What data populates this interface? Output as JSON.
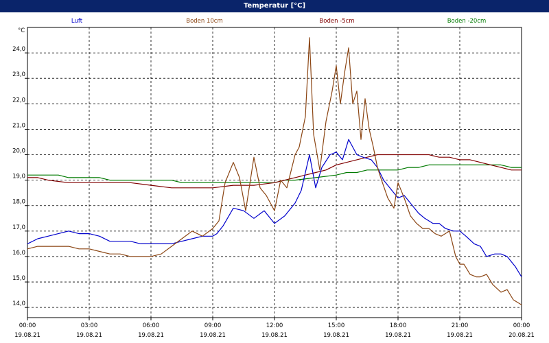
{
  "window": {
    "title": "Temperatur [°C]"
  },
  "chart_data": {
    "type": "line",
    "title": "Temperatur [°C]",
    "ylabel": "°C",
    "xlabel": "",
    "ylim": [
      13.6,
      25.0
    ],
    "yticks": [
      "14,0",
      "15,0",
      "16,0",
      "17,0",
      "18,0",
      "19,0",
      "20,0",
      "21,0",
      "22,0",
      "23,0",
      "24,0"
    ],
    "xticks": [
      {
        "time": "00:00",
        "date": "19.08.21"
      },
      {
        "time": "03:00",
        "date": "19.08.21"
      },
      {
        "time": "06:00",
        "date": "19.08.21"
      },
      {
        "time": "09:00",
        "date": "19.08.21"
      },
      {
        "time": "12:00",
        "date": "19.08.21"
      },
      {
        "time": "15:00",
        "date": "19.08.21"
      },
      {
        "time": "18:00",
        "date": "19.08.21"
      },
      {
        "time": "21:00",
        "date": "19.08.21"
      },
      {
        "time": "00:00",
        "date": "20.08.21"
      }
    ],
    "x_unit": "hours since 19.08.21 00:00",
    "grid": true,
    "series": [
      {
        "name": "Luft",
        "color": "#0000cc",
        "x": [
          0,
          0.5,
          1,
          1.5,
          2,
          2.5,
          3,
          3.5,
          4,
          4.5,
          5,
          5.5,
          6,
          6.5,
          7,
          7.5,
          8,
          8.5,
          9,
          9.2,
          9.5,
          10,
          10.5,
          11,
          11.5,
          12,
          12.5,
          13,
          13.3,
          13.7,
          14,
          14.3,
          14.7,
          15,
          15.3,
          15.6,
          16,
          16.3,
          16.7,
          17,
          17.3,
          17.7,
          18,
          18.3,
          18.7,
          19,
          19.3,
          19.7,
          20,
          20.3,
          20.7,
          21,
          21.3,
          21.7,
          22,
          22.3,
          22.7,
          23,
          23.3,
          23.7,
          24
        ],
        "y": [
          16.5,
          16.7,
          16.8,
          16.9,
          17.0,
          16.9,
          16.9,
          16.8,
          16.6,
          16.6,
          16.6,
          16.5,
          16.5,
          16.5,
          16.5,
          16.6,
          16.7,
          16.8,
          16.8,
          16.9,
          17.2,
          17.9,
          17.8,
          17.5,
          17.8,
          17.3,
          17.6,
          18.1,
          18.6,
          20.0,
          18.7,
          19.5,
          20.0,
          20.1,
          19.8,
          20.6,
          20.0,
          19.9,
          19.8,
          19.5,
          19.0,
          18.6,
          18.3,
          18.4,
          18.0,
          17.7,
          17.5,
          17.3,
          17.3,
          17.1,
          17.0,
          17.0,
          16.8,
          16.5,
          16.4,
          16.0,
          16.1,
          16.1,
          16.0,
          15.6,
          15.2
        ]
      },
      {
        "name": "Boden 10cm",
        "color": "#8b4513",
        "x": [
          0,
          0.5,
          1,
          1.5,
          2,
          2.5,
          3,
          3.5,
          4,
          4.5,
          5,
          5.5,
          6,
          6.5,
          7,
          7.5,
          8,
          8.5,
          9,
          9.3,
          9.6,
          10,
          10.3,
          10.6,
          11,
          11.3,
          11.6,
          12,
          12.3,
          12.6,
          13,
          13.2,
          13.5,
          13.7,
          13.9,
          14.2,
          14.5,
          14.8,
          15,
          15.2,
          15.4,
          15.6,
          15.8,
          16,
          16.2,
          16.4,
          16.6,
          16.8,
          17,
          17.2,
          17.5,
          17.8,
          18,
          18.3,
          18.6,
          18.9,
          19.2,
          19.5,
          19.8,
          20.1,
          20.5,
          20.8,
          21,
          21.2,
          21.5,
          21.8,
          22,
          22.3,
          22.6,
          23,
          23.3,
          23.6,
          24
        ],
        "y": [
          16.3,
          16.4,
          16.4,
          16.4,
          16.4,
          16.3,
          16.3,
          16.2,
          16.1,
          16.1,
          16.0,
          16.0,
          16.0,
          16.1,
          16.4,
          16.7,
          17.0,
          16.8,
          17.1,
          17.4,
          18.9,
          19.7,
          19.1,
          17.8,
          19.9,
          18.7,
          18.4,
          17.8,
          19.0,
          18.7,
          20.0,
          20.3,
          21.5,
          24.6,
          20.8,
          19.4,
          21.3,
          22.5,
          23.5,
          22.0,
          23.2,
          24.2,
          22.0,
          22.5,
          20.6,
          22.2,
          21.0,
          20.3,
          19.5,
          19.0,
          18.3,
          17.9,
          18.9,
          18.3,
          17.6,
          17.3,
          17.1,
          17.1,
          16.9,
          16.8,
          17.0,
          16.0,
          15.7,
          15.7,
          15.3,
          15.2,
          15.2,
          15.3,
          14.9,
          14.6,
          14.7,
          14.3,
          14.1
        ]
      },
      {
        "name": "Boden -5cm",
        "color": "#800000",
        "x": [
          0,
          0.5,
          1,
          2,
          3,
          4,
          5,
          6,
          7,
          8,
          9,
          10,
          11,
          12,
          12.5,
          13,
          13.5,
          14,
          14.5,
          15,
          15.5,
          16,
          16.5,
          17,
          17.5,
          18,
          18.5,
          19,
          19.5,
          20,
          20.5,
          21,
          21.5,
          22,
          22.5,
          23,
          23.5,
          24
        ],
        "y": [
          19.1,
          19.1,
          19.0,
          18.9,
          18.9,
          18.9,
          18.9,
          18.8,
          18.7,
          18.7,
          18.7,
          18.8,
          18.8,
          18.9,
          19.0,
          19.1,
          19.2,
          19.3,
          19.4,
          19.6,
          19.7,
          19.8,
          19.9,
          20.0,
          20.0,
          20.0,
          20.0,
          20.0,
          20.0,
          19.9,
          19.9,
          19.8,
          19.8,
          19.7,
          19.6,
          19.5,
          19.4,
          19.4
        ]
      },
      {
        "name": "Boden -20cm",
        "color": "#007a00",
        "x": [
          0,
          1,
          1.5,
          2,
          3,
          3.5,
          4,
          5,
          6,
          7,
          7.5,
          8,
          9,
          10,
          11,
          12,
          12.5,
          13,
          14,
          15,
          15.5,
          16,
          16.5,
          17,
          17.5,
          18,
          18.5,
          19,
          19.5,
          20,
          21,
          22,
          23,
          23.5,
          24
        ],
        "y": [
          19.2,
          19.2,
          19.2,
          19.1,
          19.1,
          19.1,
          19.0,
          19.0,
          19.0,
          19.0,
          18.9,
          18.9,
          18.9,
          18.9,
          18.9,
          18.9,
          19.0,
          19.0,
          19.1,
          19.2,
          19.3,
          19.3,
          19.4,
          19.4,
          19.4,
          19.4,
          19.5,
          19.5,
          19.6,
          19.6,
          19.6,
          19.6,
          19.6,
          19.5,
          19.5
        ]
      }
    ]
  }
}
